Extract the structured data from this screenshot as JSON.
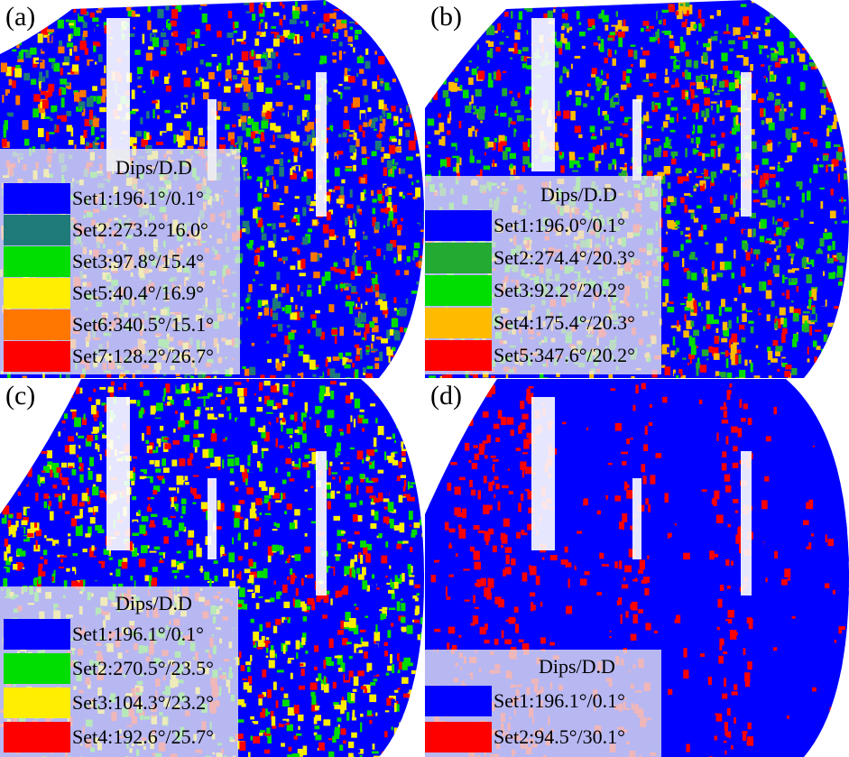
{
  "colors": {
    "background": "#ffffff",
    "legend_bg": "#ebebee",
    "set_blue": "#0000ff",
    "set_teal": "#1f7a7a",
    "set_green": "#00dd00",
    "set_darkgreen": "#22aa33",
    "set_yellow": "#ffee00",
    "set_orange": "#ff7700",
    "set_gold": "#ffbb00",
    "set_red": "#ff0000"
  },
  "panels": [
    {
      "label": "(a)",
      "legend": {
        "title": "Dips/D.D",
        "items": [
          {
            "text": "Set1:196.1°/0.1°",
            "color": "#0000ff"
          },
          {
            "text": "Set2:273.2°16.0°",
            "color": "#1f7a7a"
          },
          {
            "text": "Set3:97.8°/15.4°",
            "color": "#00dd00"
          },
          {
            "text": "Set5:40.4°/16.9°",
            "color": "#ffee00"
          },
          {
            "text": "Set6:340.5°/15.1°",
            "color": "#ff7700"
          },
          {
            "text": "Set7:128.2°/26.7°",
            "color": "#ff0000"
          }
        ]
      }
    },
    {
      "label": "(b)",
      "legend": {
        "title": "Dips/D.D",
        "items": [
          {
            "text": "Set1:196.0°/0.1°",
            "color": "#0000ff"
          },
          {
            "text": "Set2:274.4°/20.3°",
            "color": "#22aa33"
          },
          {
            "text": "Set3:92.2°/20.2°",
            "color": "#00dd00"
          },
          {
            "text": "Set4:175.4°/20.3°",
            "color": "#ffbb00"
          },
          {
            "text": "Set5:347.6°/20.2°",
            "color": "#ff0000"
          }
        ]
      }
    },
    {
      "label": "(c)",
      "legend": {
        "title": "Dips/D.D",
        "items": [
          {
            "text": "Set1:196.1°/0.1°",
            "color": "#0000ff"
          },
          {
            "text": "Set2:270.5°/23.5°",
            "color": "#00dd00"
          },
          {
            "text": "Set3:104.3°/23.2°",
            "color": "#ffee00"
          },
          {
            "text": "Set4:192.6°/25.7°",
            "color": "#ff0000"
          }
        ]
      }
    },
    {
      "label": "(d)",
      "legend": {
        "title": "Dips/D.D",
        "items": [
          {
            "text": "Set1:196.1°/0.1°",
            "color": "#0000ff"
          },
          {
            "text": "Set2:94.5°/30.1°",
            "color": "#ff0000"
          }
        ]
      }
    }
  ]
}
